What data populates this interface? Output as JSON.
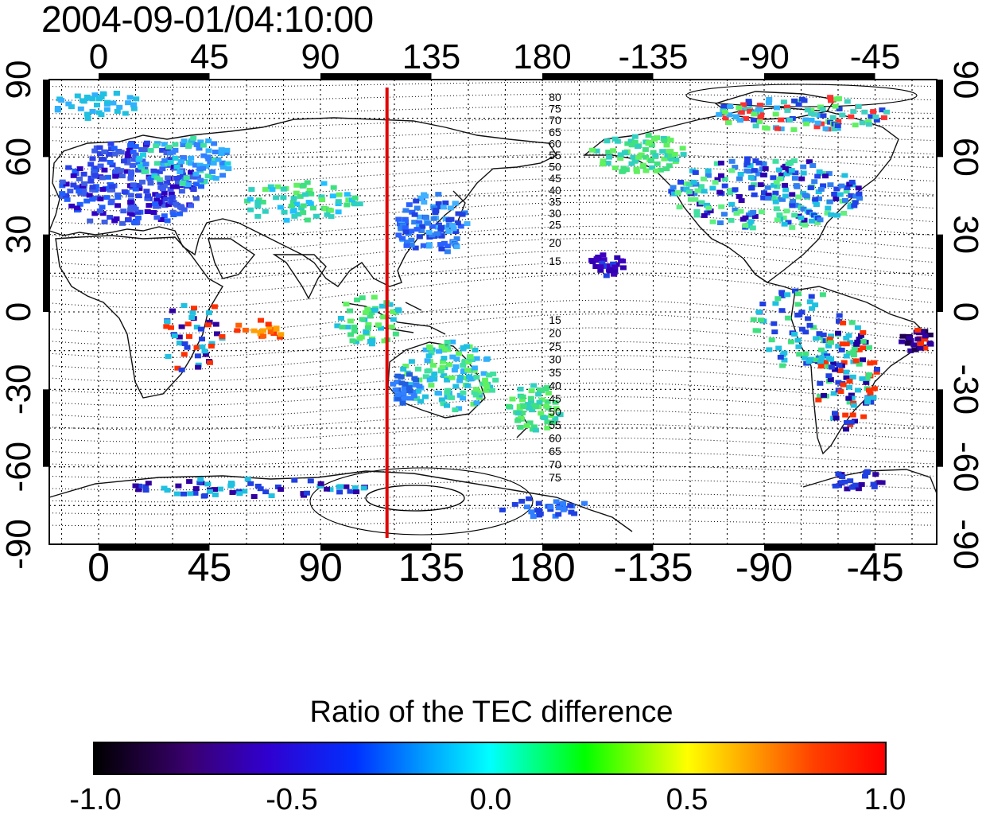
{
  "title": "2004-09-01/04:10:00",
  "map": {
    "top_lon_labels": [
      "0",
      "45",
      "90",
      "135",
      "180",
      "-135",
      "-90",
      "-45"
    ],
    "bottom_lon_labels": [
      "0",
      "45",
      "90",
      "135",
      "180",
      "-135",
      "-90",
      "-45"
    ],
    "left_lat_labels": [
      "90",
      "60",
      "30",
      "0",
      "-30",
      "-60",
      "-90"
    ],
    "right_lat_labels": [
      "90",
      "60",
      "30",
      "0",
      "-30",
      "-60",
      "-90"
    ],
    "marker_longitude": 117,
    "marker_color": "#e00000",
    "contour_labels_north": [
      "80",
      "75",
      "70",
      "65",
      "60",
      "55",
      "50",
      "45",
      "40",
      "35",
      "30",
      "25",
      "20",
      "15"
    ],
    "contour_labels_south": [
      "15",
      "20",
      "25",
      "30",
      "35",
      "40",
      "45",
      "50",
      "55",
      "60",
      "65",
      "70",
      "75"
    ]
  },
  "colorbar": {
    "title": "Ratio of the TEC difference",
    "ticks": [
      "-1.0",
      "-0.5",
      "0.0",
      "0.5",
      "1.0"
    ],
    "range": [
      -1.0,
      1.0
    ],
    "colors": [
      "#000000",
      "#3a0070",
      "#0030ff",
      "#00ffff",
      "#00ff00",
      "#ffff00",
      "#ff0000"
    ]
  }
}
